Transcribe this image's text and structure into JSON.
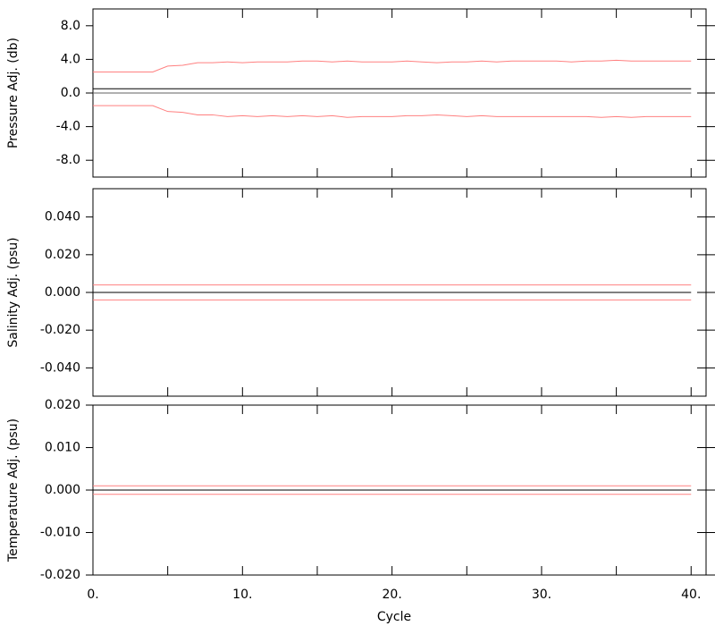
{
  "chart_data": [
    {
      "type": "line",
      "ylabel": "Pressure Adj. (db)",
      "x": [
        0,
        1,
        2,
        3,
        4,
        5,
        6,
        7,
        8,
        9,
        10,
        11,
        12,
        13,
        14,
        15,
        16,
        17,
        18,
        19,
        20,
        21,
        22,
        23,
        24,
        25,
        26,
        27,
        28,
        29,
        30,
        31,
        32,
        33,
        34,
        35,
        36,
        37,
        38,
        39,
        40
      ],
      "series": [
        {
          "color": "#ff8080",
          "values": [
            2.5,
            2.5,
            2.5,
            2.5,
            2.5,
            3.2,
            3.3,
            3.6,
            3.6,
            3.7,
            3.6,
            3.7,
            3.7,
            3.7,
            3.8,
            3.8,
            3.7,
            3.8,
            3.7,
            3.7,
            3.7,
            3.8,
            3.7,
            3.6,
            3.7,
            3.7,
            3.8,
            3.7,
            3.8,
            3.8,
            3.8,
            3.8,
            3.7,
            3.8,
            3.8,
            3.9,
            3.8,
            3.8,
            3.8,
            3.8,
            3.8
          ]
        },
        {
          "color": "#ff8080",
          "values": [
            -1.5,
            -1.5,
            -1.5,
            -1.5,
            -1.5,
            -2.2,
            -2.3,
            -2.6,
            -2.6,
            -2.8,
            -2.7,
            -2.8,
            -2.7,
            -2.8,
            -2.7,
            -2.8,
            -2.7,
            -2.9,
            -2.8,
            -2.8,
            -2.8,
            -2.7,
            -2.7,
            -2.6,
            -2.7,
            -2.8,
            -2.7,
            -2.8,
            -2.8,
            -2.8,
            -2.8,
            -2.8,
            -2.8,
            -2.8,
            -2.9,
            -2.8,
            -2.9,
            -2.8,
            -2.8,
            -2.8,
            -2.8
          ]
        },
        {
          "color": "#000000",
          "values": [
            0.5,
            0.5,
            0.5,
            0.5,
            0.5,
            0.5,
            0.5,
            0.5,
            0.5,
            0.5,
            0.5,
            0.5,
            0.5,
            0.5,
            0.5,
            0.5,
            0.5,
            0.5,
            0.5,
            0.5,
            0.5,
            0.5,
            0.5,
            0.5,
            0.5,
            0.5,
            0.5,
            0.5,
            0.5,
            0.5,
            0.5,
            0.5,
            0.5,
            0.5,
            0.5,
            0.5,
            0.5,
            0.5,
            0.5,
            0.5,
            0.5
          ]
        },
        {
          "color": "#606060",
          "values": [
            0,
            0,
            0,
            0,
            0,
            0,
            0,
            0,
            0,
            0,
            0,
            0,
            0,
            0,
            0,
            0,
            0,
            0,
            0,
            0,
            0,
            0,
            0,
            0,
            0,
            0,
            0,
            0,
            0,
            0,
            0,
            0,
            0,
            0,
            0,
            0,
            0,
            0,
            0,
            0,
            0
          ]
        }
      ],
      "xlim": [
        0,
        41
      ],
      "ylim": [
        -10,
        10
      ],
      "yticks": [
        {
          "value": 8,
          "label": "8.0"
        },
        {
          "value": 4,
          "label": "4.0"
        },
        {
          "value": 0,
          "label": "0.0"
        },
        {
          "value": -4,
          "label": "-4.0"
        },
        {
          "value": -8,
          "label": "-8.0"
        }
      ]
    },
    {
      "type": "line",
      "ylabel": "Salinity Adj. (psu)",
      "x": [
        0,
        40
      ],
      "series": [
        {
          "color": "#ff8080",
          "values": [
            0.004,
            0.004
          ]
        },
        {
          "color": "#ff8080",
          "values": [
            -0.004,
            -0.004
          ]
        },
        {
          "color": "#000000",
          "values": [
            0,
            0
          ]
        }
      ],
      "xlim": [
        0,
        41
      ],
      "ylim": [
        -0.055,
        0.055
      ],
      "yticks": [
        {
          "value": 0.04,
          "label": "0.040"
        },
        {
          "value": 0.02,
          "label": "0.020"
        },
        {
          "value": 0,
          "label": "0.000"
        },
        {
          "value": -0.02,
          "label": "-0.020"
        },
        {
          "value": -0.04,
          "label": "-0.040"
        }
      ]
    },
    {
      "type": "line",
      "ylabel": "Temperature Adj. (psu)",
      "xlabel": "Cycle",
      "x": [
        0,
        40
      ],
      "series": [
        {
          "color": "#ff8080",
          "values": [
            0.001,
            0.001
          ]
        },
        {
          "color": "#ff8080",
          "values": [
            -0.001,
            -0.001
          ]
        },
        {
          "color": "#000000",
          "values": [
            0,
            0
          ]
        }
      ],
      "xlim": [
        0,
        41
      ],
      "ylim": [
        -0.02,
        0.02
      ],
      "xticks": [
        {
          "value": 0,
          "label": "0."
        },
        {
          "value": 5,
          "label": null
        },
        {
          "value": 10,
          "label": "10."
        },
        {
          "value": 15,
          "label": null
        },
        {
          "value": 20,
          "label": "20."
        },
        {
          "value": 25,
          "label": null
        },
        {
          "value": 30,
          "label": "30."
        },
        {
          "value": 35,
          "label": null
        },
        {
          "value": 40,
          "label": "40."
        }
      ],
      "yticks": [
        {
          "value": 0.02,
          "label": "0.020"
        },
        {
          "value": 0.01,
          "label": "0.010"
        },
        {
          "value": 0,
          "label": "0.000"
        },
        {
          "value": -0.01,
          "label": "-0.010"
        },
        {
          "value": -0.02,
          "label": "-0.020"
        }
      ]
    }
  ]
}
